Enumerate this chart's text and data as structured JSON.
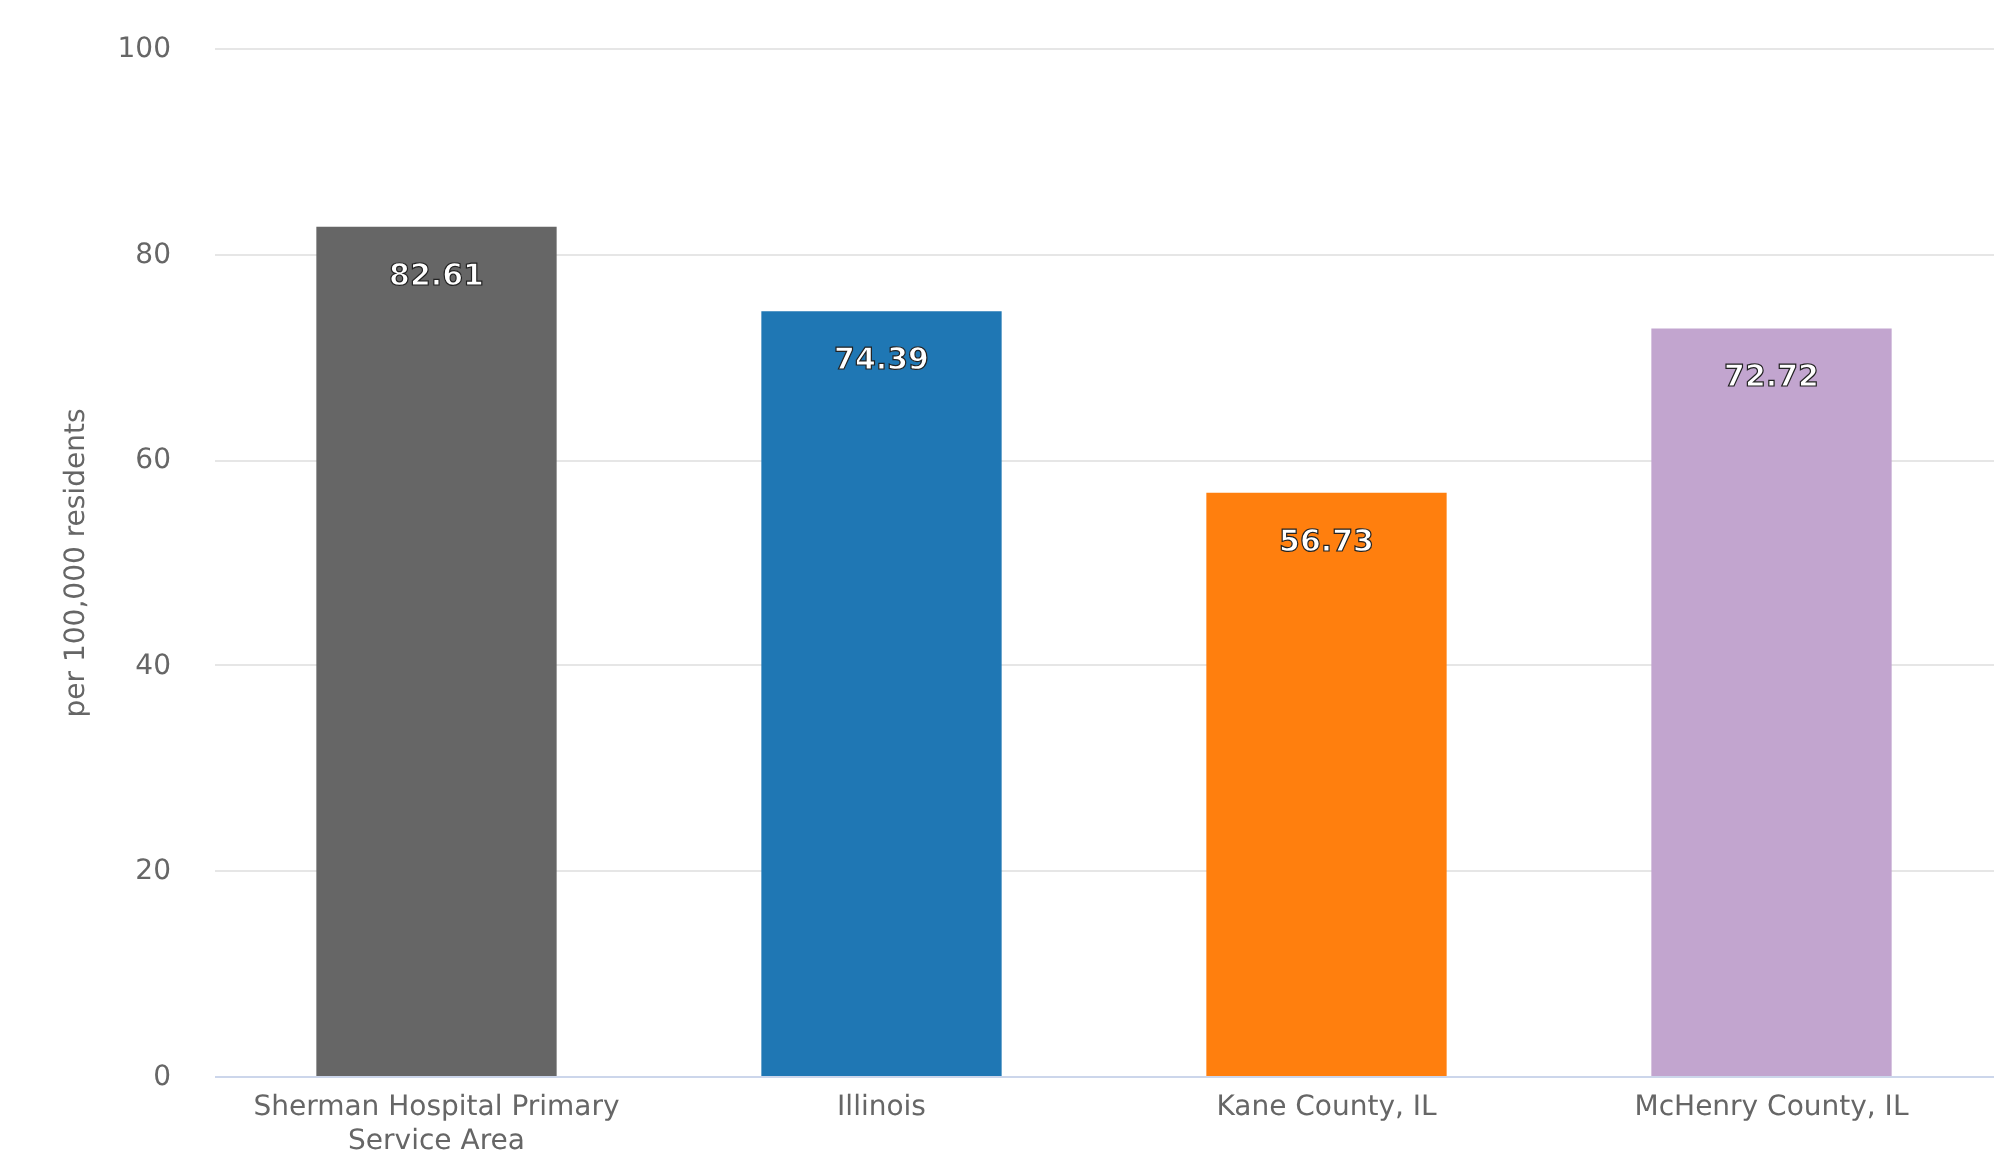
{
  "chart_data": {
    "type": "bar",
    "categories": [
      "Sherman Hospital Primary Service Area",
      "Illinois",
      "Kane County, IL",
      "McHenry County, IL"
    ],
    "values": [
      82.61,
      74.39,
      56.73,
      72.72
    ],
    "colors": [
      "#666666",
      "#1f77b4",
      "#ff7f0e",
      "#c2a5cf"
    ],
    "ylabel": "per 100,000 residents",
    "ylim": [
      0,
      100
    ],
    "yticks": [
      0,
      20,
      40,
      60,
      80,
      100
    ],
    "grid": "y",
    "data_labels": true
  }
}
